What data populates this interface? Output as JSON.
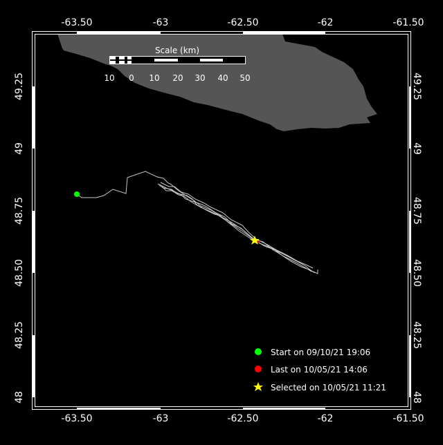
{
  "map": {
    "colors": {
      "background": "#000000",
      "land": "#555555",
      "track": "#c8c8c8",
      "frame": "#ffffff",
      "start": "#00ff00",
      "last": "#ff0000",
      "selected": "#ffff00"
    },
    "lon_ticks": [
      "-63.50",
      "-63",
      "-62.50",
      "-62",
      "-61.50"
    ],
    "lat_ticks": [
      "49.25",
      "49",
      "48.75",
      "48.50",
      "48.25",
      "48"
    ],
    "scale": {
      "title": "Scale (km)",
      "labels": [
        "10",
        "0",
        "10",
        "20",
        "30",
        "40",
        "50"
      ]
    },
    "legend": [
      {
        "label": "Start on 09/10/21 19:06",
        "icon": "green-circle"
      },
      {
        "label": "Last on 10/05/21 14:06",
        "icon": "red-circle"
      },
      {
        "label": "Selected on 10/05/21 11:21",
        "icon": "yellow-star"
      }
    ]
  }
}
